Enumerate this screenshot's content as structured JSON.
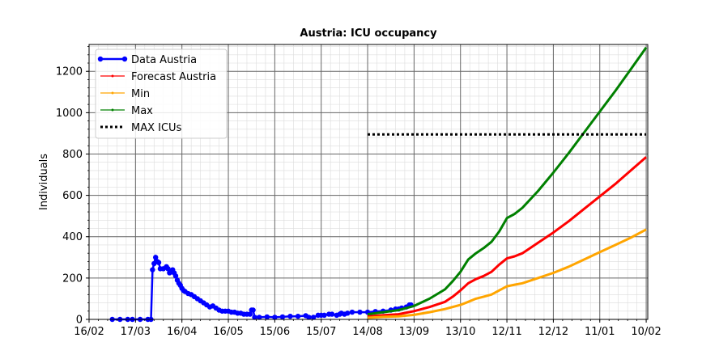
{
  "chart_data": {
    "type": "line",
    "title": "Austria: ICU occupancy",
    "xlabel": "",
    "ylabel": "Individuals",
    "x_unit": "days since 2020-02-16",
    "xlim": [
      0,
      361
    ],
    "ylim": [
      0,
      1330
    ],
    "x_ticks": [
      {
        "x": 0,
        "label": "16/02"
      },
      {
        "x": 30,
        "label": "17/03"
      },
      {
        "x": 60,
        "label": "16/04"
      },
      {
        "x": 90,
        "label": "16/05"
      },
      {
        "x": 120,
        "label": "15/06"
      },
      {
        "x": 150,
        "label": "15/07"
      },
      {
        "x": 180,
        "label": "14/08"
      },
      {
        "x": 210,
        "label": "13/09"
      },
      {
        "x": 240,
        "label": "13/10"
      },
      {
        "x": 270,
        "label": "12/11"
      },
      {
        "x": 300,
        "label": "12/12"
      },
      {
        "x": 330,
        "label": "11/01"
      },
      {
        "x": 360,
        "label": "10/02"
      }
    ],
    "y_ticks": [
      0,
      200,
      400,
      600,
      800,
      1000,
      1200
    ],
    "grid": true,
    "legend_position": "top-left",
    "series": [
      {
        "name": "Data Austria",
        "color": "#0000ff",
        "style": "data",
        "points": [
          [
            15,
            0
          ],
          [
            20,
            0
          ],
          [
            25,
            0
          ],
          [
            28,
            0
          ],
          [
            33,
            0
          ],
          [
            38,
            0
          ],
          [
            40,
            0
          ],
          [
            41,
            240
          ],
          [
            42,
            270
          ],
          [
            43,
            300
          ],
          [
            44,
            280
          ],
          [
            45,
            275
          ],
          [
            46,
            245
          ],
          [
            48,
            245
          ],
          [
            50,
            255
          ],
          [
            51,
            245
          ],
          [
            52,
            225
          ],
          [
            53,
            230
          ],
          [
            54,
            240
          ],
          [
            55,
            225
          ],
          [
            56,
            210
          ],
          [
            57,
            190
          ],
          [
            58,
            175
          ],
          [
            59,
            165
          ],
          [
            60,
            150
          ],
          [
            61,
            140
          ],
          [
            62,
            135
          ],
          [
            64,
            125
          ],
          [
            66,
            120
          ],
          [
            68,
            110
          ],
          [
            70,
            100
          ],
          [
            72,
            90
          ],
          [
            74,
            80
          ],
          [
            76,
            70
          ],
          [
            78,
            60
          ],
          [
            80,
            65
          ],
          [
            82,
            55
          ],
          [
            84,
            45
          ],
          [
            86,
            40
          ],
          [
            88,
            40
          ],
          [
            90,
            40
          ],
          [
            92,
            35
          ],
          [
            94,
            35
          ],
          [
            96,
            30
          ],
          [
            98,
            30
          ],
          [
            100,
            25
          ],
          [
            102,
            25
          ],
          [
            104,
            25
          ],
          [
            105,
            45
          ],
          [
            106,
            45
          ],
          [
            107,
            10
          ],
          [
            110,
            10
          ],
          [
            115,
            12
          ],
          [
            120,
            10
          ],
          [
            125,
            12
          ],
          [
            130,
            15
          ],
          [
            135,
            15
          ],
          [
            140,
            18
          ],
          [
            142,
            10
          ],
          [
            145,
            10
          ],
          [
            148,
            20
          ],
          [
            150,
            20
          ],
          [
            152,
            20
          ],
          [
            155,
            25
          ],
          [
            157,
            25
          ],
          [
            160,
            20
          ],
          [
            162,
            25
          ],
          [
            163,
            30
          ],
          [
            165,
            25
          ],
          [
            167,
            30
          ],
          [
            170,
            35
          ],
          [
            175,
            35
          ],
          [
            180,
            35
          ],
          [
            185,
            38
          ],
          [
            190,
            40
          ],
          [
            195,
            45
          ],
          [
            198,
            50
          ],
          [
            200,
            50
          ],
          [
            202,
            55
          ],
          [
            205,
            60
          ],
          [
            207,
            70
          ],
          [
            208,
            70
          ]
        ]
      },
      {
        "name": "Forecast Austria",
        "color": "#ff0000",
        "style": "forecast",
        "points": [
          [
            180,
            15
          ],
          [
            190,
            20
          ],
          [
            200,
            25
          ],
          [
            210,
            40
          ],
          [
            220,
            60
          ],
          [
            230,
            85
          ],
          [
            235,
            110
          ],
          [
            240,
            140
          ],
          [
            245,
            175
          ],
          [
            250,
            195
          ],
          [
            255,
            210
          ],
          [
            260,
            230
          ],
          [
            265,
            265
          ],
          [
            270,
            295
          ],
          [
            275,
            305
          ],
          [
            280,
            320
          ],
          [
            290,
            370
          ],
          [
            300,
            420
          ],
          [
            310,
            475
          ],
          [
            320,
            535
          ],
          [
            330,
            595
          ],
          [
            340,
            655
          ],
          [
            350,
            720
          ],
          [
            360,
            785
          ]
        ]
      },
      {
        "name": "Min",
        "color": "#ffa500",
        "style": "forecast",
        "points": [
          [
            180,
            8
          ],
          [
            190,
            12
          ],
          [
            200,
            15
          ],
          [
            210,
            22
          ],
          [
            220,
            35
          ],
          [
            230,
            50
          ],
          [
            240,
            70
          ],
          [
            245,
            85
          ],
          [
            250,
            100
          ],
          [
            255,
            110
          ],
          [
            260,
            120
          ],
          [
            265,
            140
          ],
          [
            270,
            160
          ],
          [
            275,
            168
          ],
          [
            280,
            175
          ],
          [
            290,
            200
          ],
          [
            300,
            225
          ],
          [
            310,
            255
          ],
          [
            320,
            290
          ],
          [
            330,
            325
          ],
          [
            340,
            360
          ],
          [
            350,
            395
          ],
          [
            360,
            435
          ]
        ]
      },
      {
        "name": "Max",
        "color": "#008000",
        "style": "forecast",
        "points": [
          [
            180,
            25
          ],
          [
            190,
            35
          ],
          [
            200,
            45
          ],
          [
            210,
            65
          ],
          [
            220,
            100
          ],
          [
            230,
            145
          ],
          [
            235,
            185
          ],
          [
            240,
            230
          ],
          [
            245,
            290
          ],
          [
            250,
            320
          ],
          [
            255,
            345
          ],
          [
            260,
            375
          ],
          [
            265,
            425
          ],
          [
            270,
            490
          ],
          [
            275,
            510
          ],
          [
            280,
            540
          ],
          [
            290,
            620
          ],
          [
            300,
            710
          ],
          [
            310,
            805
          ],
          [
            320,
            905
          ],
          [
            330,
            1005
          ],
          [
            340,
            1105
          ],
          [
            350,
            1210
          ],
          [
            360,
            1315
          ]
        ]
      },
      {
        "name": "MAX ICUs",
        "color": "#000000",
        "style": "dotted",
        "points": [
          [
            180,
            895
          ],
          [
            360,
            895
          ]
        ]
      }
    ]
  }
}
